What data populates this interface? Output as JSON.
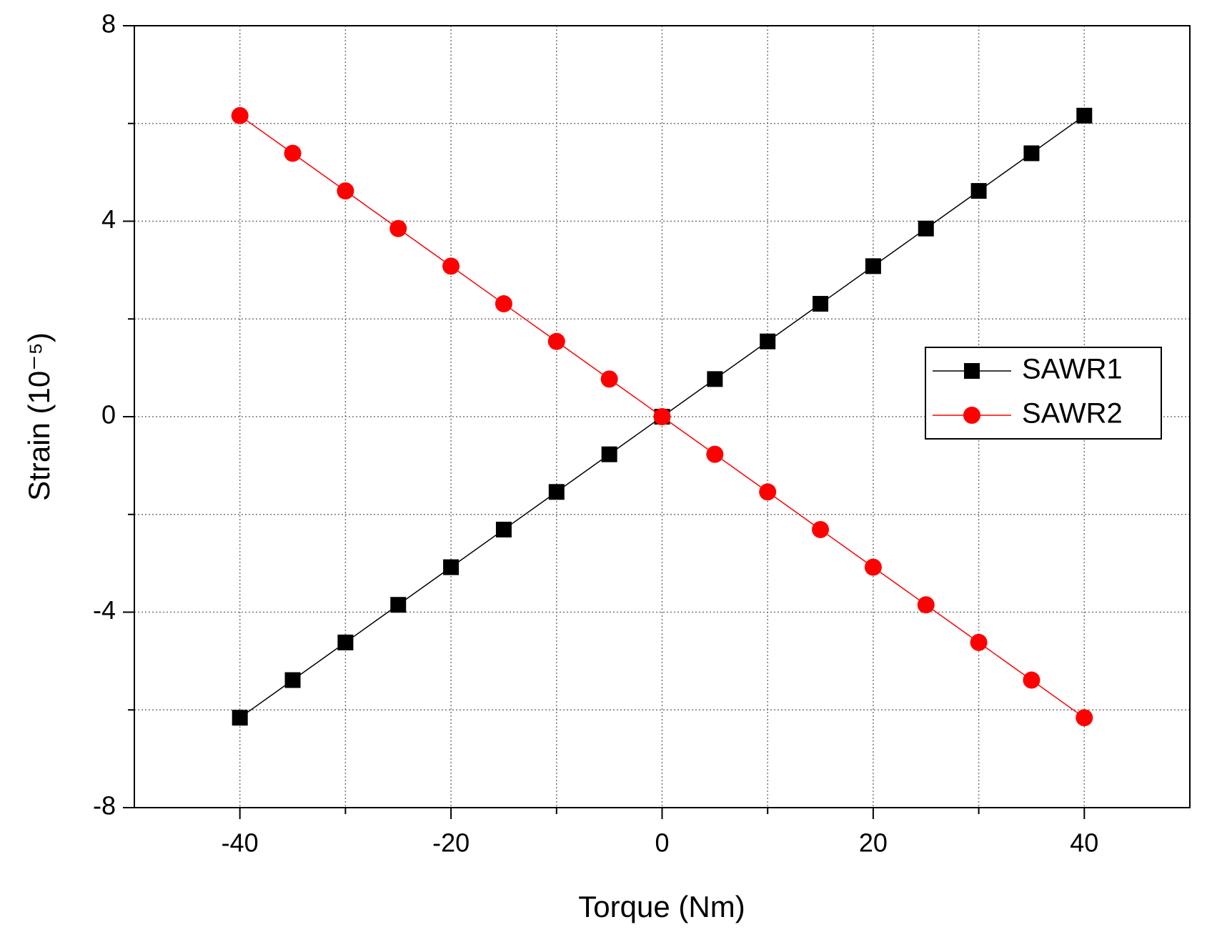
{
  "chart_data": {
    "type": "line",
    "xlabel": "Torque (Nm)",
    "ylabel": "Strain (10⁻⁵)",
    "x": [
      -40,
      -35,
      -30,
      -25,
      -20,
      -15,
      -10,
      -5,
      0,
      5,
      10,
      15,
      20,
      25,
      30,
      35,
      40
    ],
    "series": [
      {
        "name": "SAWR1",
        "color": "#000000",
        "marker": "square",
        "values": [
          -6.16,
          -5.39,
          -4.62,
          -3.85,
          -3.08,
          -2.31,
          -1.54,
          -0.77,
          0,
          0.77,
          1.54,
          2.31,
          3.08,
          3.85,
          4.62,
          5.39,
          6.16
        ]
      },
      {
        "name": "SAWR2",
        "color": "#ff0000",
        "marker": "circle",
        "values": [
          6.16,
          5.39,
          4.62,
          3.85,
          3.08,
          2.31,
          1.54,
          0.77,
          0,
          -0.77,
          -1.54,
          -2.31,
          -3.08,
          -3.85,
          -4.62,
          -5.39,
          -6.16
        ]
      }
    ],
    "xlim": [
      -50,
      50
    ],
    "xticks": [
      -40,
      -20,
      0,
      20,
      40
    ],
    "xminorticks": [
      -30,
      -10,
      10,
      30
    ],
    "ylim": [
      -8,
      8
    ],
    "yticks": [
      -8,
      -4,
      0,
      4,
      8
    ],
    "yminorticks": [
      -6,
      -2,
      2,
      6
    ],
    "grid": true,
    "legend": "center right"
  }
}
